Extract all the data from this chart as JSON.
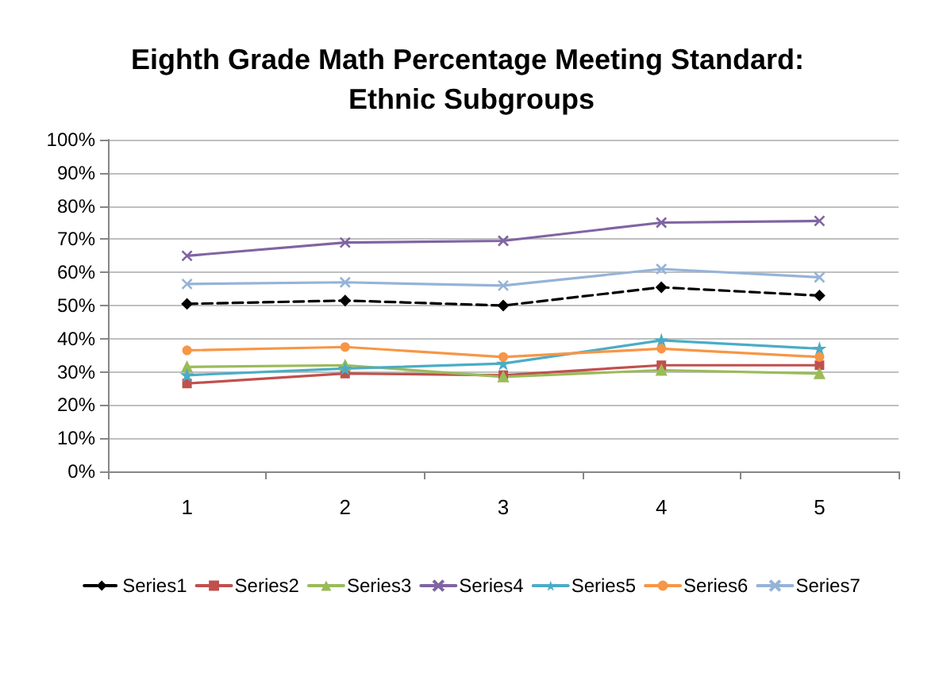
{
  "chart_data": {
    "type": "line",
    "title": "Eighth Grade Math Percentage Meeting Standard: Ethnic Subgroups",
    "categories": [
      "1",
      "2",
      "3",
      "4",
      "5"
    ],
    "series": [
      {
        "name": "Series1",
        "color": "#000000",
        "marker": "diamond",
        "line_style": "dashed",
        "values": [
          50.5,
          51.5,
          50,
          55.5,
          53
        ]
      },
      {
        "name": "Series2",
        "color": "#c0504d",
        "marker": "square",
        "values": [
          26.5,
          29.5,
          29,
          32,
          32
        ]
      },
      {
        "name": "Series3",
        "color": "#9bbb59",
        "marker": "triangle",
        "values": [
          31.5,
          32,
          28.5,
          30.5,
          29.5
        ]
      },
      {
        "name": "Series4",
        "color": "#8064a2",
        "marker": "cross",
        "values": [
          65,
          69,
          69.5,
          75,
          75.5
        ]
      },
      {
        "name": "Series5",
        "color": "#4bacc6",
        "marker": "star",
        "values": [
          29,
          31,
          32.5,
          39.5,
          37
        ]
      },
      {
        "name": "Series6",
        "color": "#f79646",
        "marker": "circle",
        "values": [
          36.5,
          37.5,
          34.5,
          37,
          34.5
        ]
      },
      {
        "name": "Series7",
        "color": "#95b3d7",
        "marker": "cross",
        "values": [
          56.5,
          57,
          56,
          61,
          58.5
        ]
      }
    ],
    "ylim": [
      0,
      100
    ],
    "yticks": [
      {
        "value": 0,
        "label": "0%"
      },
      {
        "value": 10,
        "label": "10%"
      },
      {
        "value": 20,
        "label": "20%"
      },
      {
        "value": 30,
        "label": "30%"
      },
      {
        "value": 40,
        "label": "40%"
      },
      {
        "value": 50,
        "label": "50%"
      },
      {
        "value": 60,
        "label": "60%"
      },
      {
        "value": 70,
        "label": "70%"
      },
      {
        "value": 80,
        "label": "80%"
      },
      {
        "value": 90,
        "label": "90%"
      },
      {
        "value": 100,
        "label": "100%"
      }
    ],
    "grid": "y",
    "legend": "bottom"
  }
}
